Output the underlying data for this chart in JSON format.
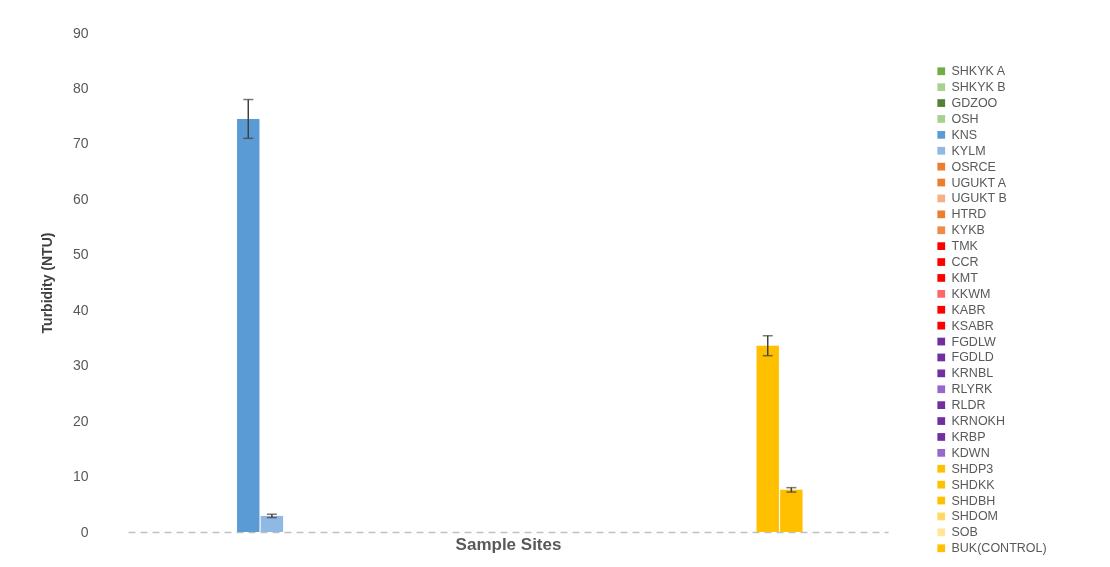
{
  "chart_data": {
    "type": "bar",
    "xlabel": "Sample Sites",
    "ylabel": "Turbidity (NTU)",
    "categories": [
      null
    ],
    "ylim": [
      0,
      90
    ],
    "yticks": [
      0,
      10,
      20,
      30,
      40,
      50,
      60,
      70,
      80,
      90
    ],
    "grid": false,
    "legend": "right",
    "series": [
      {
        "name": "SHKYK A",
        "color": "#70ad47",
        "values": [
          null
        ]
      },
      {
        "name": "SHKYK B",
        "color": "#a9d18e",
        "values": [
          null
        ]
      },
      {
        "name": "GDZOO",
        "color": "#548235",
        "values": [
          null
        ]
      },
      {
        "name": "OSH",
        "color": "#a9d18e",
        "values": [
          null
        ]
      },
      {
        "name": "KNS",
        "color": "#5b9bd5",
        "values": [
          74.5
        ],
        "errors": [
          3.5
        ]
      },
      {
        "name": "KYLM",
        "color": "#8fb8e3",
        "values": [
          2.9
        ],
        "errors": [
          0.3
        ]
      },
      {
        "name": "OSRCE",
        "color": "#ed7d31",
        "values": [
          null
        ]
      },
      {
        "name": "UGUKT A",
        "color": "#ed7d31",
        "values": [
          null
        ]
      },
      {
        "name": "UGUKT  B",
        "color": "#f4b183",
        "values": [
          null
        ]
      },
      {
        "name": "HTRD",
        "color": "#ed7d31",
        "values": [
          null
        ]
      },
      {
        "name": "KYKB",
        "color": "#f08a4b",
        "values": [
          null
        ]
      },
      {
        "name": "TMK",
        "color": "#ff0000",
        "values": [
          null
        ]
      },
      {
        "name": "CCR",
        "color": "#ff0000",
        "values": [
          null
        ]
      },
      {
        "name": "KMT",
        "color": "#ff0000",
        "values": [
          null
        ]
      },
      {
        "name": "KKWM",
        "color": "#ff6666",
        "values": [
          null
        ]
      },
      {
        "name": "KABR",
        "color": "#ff0000",
        "values": [
          null
        ]
      },
      {
        "name": "KSABR",
        "color": "#ff0000",
        "values": [
          null
        ]
      },
      {
        "name": "FGDLW",
        "color": "#7030a0",
        "values": [
          null
        ]
      },
      {
        "name": "FGDLD",
        "color": "#7030a0",
        "values": [
          null
        ]
      },
      {
        "name": "KRNBL",
        "color": "#7030a0",
        "values": [
          null
        ]
      },
      {
        "name": "RLYRK",
        "color": "#9966cc",
        "values": [
          null
        ]
      },
      {
        "name": "RLDR",
        "color": "#7030a0",
        "values": [
          null
        ]
      },
      {
        "name": "KRNOKH",
        "color": "#7030a0",
        "values": [
          null
        ]
      },
      {
        "name": "KRBP",
        "color": "#7030a0",
        "values": [
          null
        ]
      },
      {
        "name": "KDWN",
        "color": "#9966cc",
        "values": [
          null
        ]
      },
      {
        "name": "SHDP3",
        "color": "#ffc000",
        "values": [
          null
        ]
      },
      {
        "name": "SHDKK",
        "color": "#ffc000",
        "values": [
          33.6
        ],
        "errors": [
          1.8
        ]
      },
      {
        "name": "SHDBH",
        "color": "#ffc000",
        "values": [
          7.6
        ],
        "errors": [
          0.4
        ]
      },
      {
        "name": "SHDOM",
        "color": "#ffd966",
        "values": [
          null
        ]
      },
      {
        "name": "SOB",
        "color": "#ffe699",
        "values": [
          null
        ]
      },
      {
        "name": "BUK(CONTROL)",
        "color": "#ffc000",
        "values": [
          null
        ]
      }
    ]
  }
}
